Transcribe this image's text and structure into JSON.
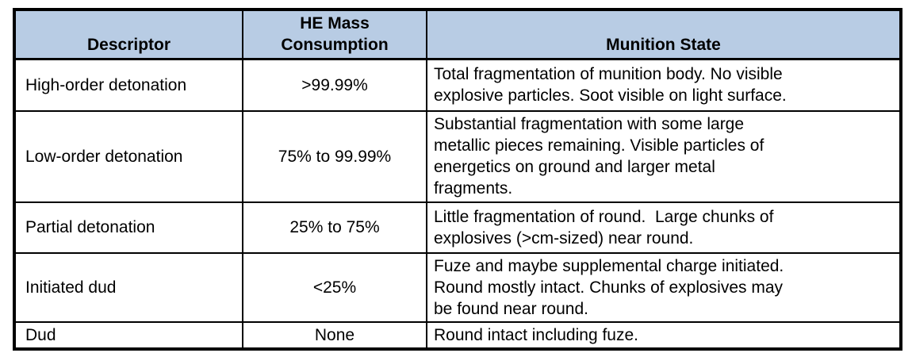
{
  "colors": {
    "header_bg": "#B8CCE4",
    "border": "#000000",
    "text": "#000000"
  },
  "table": {
    "headers": {
      "descriptor": "Descriptor",
      "consumption": "HE Mass\nConsumption",
      "state": "Munition State"
    },
    "rows": [
      {
        "descriptor": "High-order detonation",
        "consumption": ">99.99%",
        "state": "Total fragmentation of munition body. No visible\nexplosive particles. Soot visible on light surface."
      },
      {
        "descriptor": "Low-order detonation",
        "consumption": "75% to 99.99%",
        "state": "Substantial fragmentation with some large\nmetallic pieces remaining. Visible particles of\nenergetics on ground and larger metal\nfragments."
      },
      {
        "descriptor": "Partial detonation",
        "consumption": "25% to 75%",
        "state": "Little fragmentation of round.  Large chunks of\nexplosives (>cm-sized) near round."
      },
      {
        "descriptor": "Initiated dud",
        "consumption": "<25%",
        "state": "Fuze and maybe supplemental charge initiated.\nRound mostly intact. Chunks of explosives may\nbe found near round."
      },
      {
        "descriptor": "Dud",
        "consumption": "None",
        "state": "Round intact including fuze."
      }
    ]
  }
}
